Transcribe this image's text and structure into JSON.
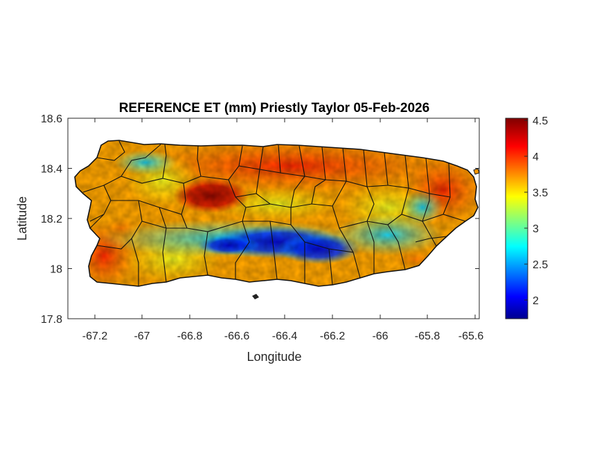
{
  "title": "REFERENCE ET (mm) Priestly Taylor 05-Feb-2026",
  "xlabel": "Longitude",
  "ylabel": "Latitude",
  "x_ticks": [
    "-67.2",
    "-67",
    "-66.8",
    "-66.6",
    "-66.4",
    "-66.2",
    "-66",
    "-65.8",
    "-65.6"
  ],
  "y_ticks": [
    "18.6",
    "18.4",
    "18.2",
    "18",
    "17.8"
  ],
  "colorbar": {
    "ticks": [
      "4.5",
      "4",
      "3.5",
      "3",
      "2.5",
      "2"
    ],
    "range": [
      1.75,
      4.5
    ],
    "colormap": "jet"
  },
  "chart_data": {
    "type": "heatmap",
    "title": "REFERENCE ET (mm) Priestly Taylor 05-Feb-2026",
    "xlabel": "Longitude",
    "ylabel": "Latitude",
    "xlim": [
      -67.3,
      -65.58
    ],
    "ylim": [
      17.8,
      18.6
    ],
    "units": "mm",
    "region": "Puerto Rico",
    "value_range": [
      1.75,
      4.5
    ],
    "colormap": "jet",
    "grid": false,
    "zones": [
      {
        "area": "central-west highlands",
        "value": 4.4
      },
      {
        "area": "southwest coast",
        "value": 4.1
      },
      {
        "area": "east coast",
        "value": 4.0
      },
      {
        "area": "north coast",
        "value": 3.8
      },
      {
        "area": "south-central mountains",
        "value": 1.9
      },
      {
        "area": "southern band",
        "value": 2.6
      },
      {
        "area": "west interior",
        "value": 3.3
      }
    ]
  }
}
